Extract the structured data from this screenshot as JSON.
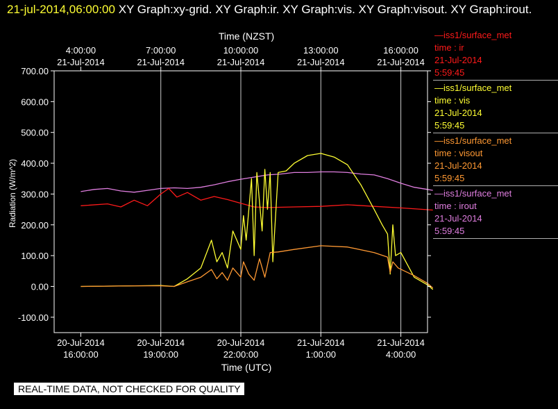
{
  "header": {
    "timestamp": "21-jul-2014,06:00:00",
    "title": "  XY Graph:xy-grid.  XY Graph:ir.  XY Graph:vis.  XY Graph:visout.  XY Graph:irout."
  },
  "legend": [
    {
      "line1": "—iss1/surface_met",
      "line2": "time : ir",
      "line3": "21-Jul-2014",
      "line4": "5:59:45",
      "color": "#ff1a1a"
    },
    {
      "line1": "—iss1/surface_met",
      "line2": "time : vis",
      "line3": "21-Jul-2014",
      "line4": "5:59:45",
      "color": "#ffff33"
    },
    {
      "line1": "—iss1/surface_met",
      "line2": "time : visout",
      "line3": "21-Jul-2014",
      "line4": "5:59:45",
      "color": "#ff9933"
    },
    {
      "line1": "—iss1/surface_met",
      "line2": "time : irout",
      "line3": "21-Jul-2014",
      "line4": "5:59:45",
      "color": "#e07ee0"
    }
  ],
  "disclaimer": "REAL-TIME DATA, NOT CHECKED FOR QUALITY",
  "chart_data": {
    "type": "line",
    "title": "",
    "xlabel": "Time (UTC)",
    "xlabel_top": "Time (NZST)",
    "ylabel": "Radiation (W/m^2)",
    "ylim": [
      -150,
      700
    ],
    "xlim_hours_utc": [
      15,
      29
    ],
    "grid": true,
    "legend_position": "right",
    "y_ticks": [
      "700.00",
      "600.00",
      "500.00",
      "400.00",
      "300.00",
      "200.00",
      "100.00",
      "0.00",
      "-100.00"
    ],
    "x_ticks_bottom": [
      {
        "date": "20-Jul-2014",
        "time": "16:00:00"
      },
      {
        "date": "20-Jul-2014",
        "time": "19:00:00"
      },
      {
        "date": "20-Jul-2014",
        "time": "22:00:00"
      },
      {
        "date": "21-Jul-2014",
        "time": "1:00:00"
      },
      {
        "date": "21-Jul-2014",
        "time": "4:00:00"
      }
    ],
    "x_ticks_top": [
      {
        "time": "4:00:00",
        "date": "21-Jul-2014"
      },
      {
        "time": "7:00:00",
        "date": "21-Jul-2014"
      },
      {
        "time": "10:00:00",
        "date": "21-Jul-2014"
      },
      {
        "time": "13:00:00",
        "date": "21-Jul-2014"
      },
      {
        "time": "16:00:00",
        "date": "21-Jul-2014"
      }
    ],
    "series": [
      {
        "name": "ir",
        "color": "#ff1a1a",
        "x": [
          16,
          17,
          17.5,
          18,
          18.5,
          19,
          19.3,
          19.6,
          20,
          20.5,
          21,
          21.5,
          22,
          22.5,
          23,
          24,
          25,
          26,
          27,
          28,
          29.2
        ],
        "y": [
          262,
          268,
          258,
          280,
          262,
          300,
          318,
          290,
          305,
          280,
          292,
          282,
          270,
          258,
          256,
          258,
          260,
          265,
          260,
          255,
          248
        ]
      },
      {
        "name": "vis",
        "color": "#ffff33",
        "x": [
          16,
          18,
          19,
          19.5,
          20.0,
          20.5,
          20.9,
          21.1,
          21.3,
          21.5,
          21.7,
          22.0,
          22.1,
          22.2,
          22.4,
          22.5,
          22.6,
          22.8,
          22.9,
          23.0,
          23.1,
          23.2,
          23.4,
          23.7,
          24,
          24.5,
          25,
          25.5,
          26.0,
          26.5,
          27.0,
          27.3,
          27.5,
          27.6,
          27.7,
          27.8,
          28.0,
          28.5,
          29.0,
          29.2
        ],
        "y": [
          0,
          2,
          3,
          0,
          25,
          60,
          150,
          80,
          110,
          60,
          180,
          120,
          230,
          150,
          350,
          100,
          370,
          180,
          380,
          250,
          370,
          80,
          370,
          375,
          400,
          425,
          432,
          420,
          395,
          330,
          250,
          200,
          170,
          40,
          200,
          100,
          110,
          30,
          5,
          -10
        ]
      },
      {
        "name": "visout",
        "color": "#ff9933",
        "x": [
          16,
          18,
          19,
          19.5,
          20.0,
          20.5,
          20.9,
          21.1,
          21.3,
          21.5,
          21.7,
          22.0,
          22.1,
          22.3,
          22.5,
          22.7,
          22.9,
          23.1,
          23.4,
          24,
          25,
          26,
          27,
          27.5,
          27.6,
          27.7,
          27.9,
          28.5,
          29.0,
          29.2
        ],
        "y": [
          0,
          2,
          2,
          0,
          15,
          30,
          55,
          25,
          45,
          20,
          60,
          30,
          80,
          40,
          20,
          90,
          30,
          110,
          112,
          120,
          132,
          128,
          110,
          95,
          45,
          80,
          60,
          35,
          10,
          -5
        ]
      },
      {
        "name": "irout",
        "color": "#e07ee0",
        "x": [
          16,
          16.5,
          17,
          17.5,
          18,
          18.5,
          19,
          19.5,
          20,
          20.5,
          21,
          21.5,
          22,
          22.5,
          23,
          23.5,
          24,
          24.5,
          25,
          25.5,
          26,
          26.5,
          27,
          27.5,
          28,
          28.5,
          29.0,
          29.2
        ],
        "y": [
          308,
          315,
          318,
          310,
          306,
          312,
          318,
          320,
          318,
          322,
          330,
          340,
          348,
          355,
          362,
          365,
          370,
          370,
          372,
          372,
          370,
          365,
          362,
          350,
          335,
          322,
          315,
          312
        ]
      }
    ]
  }
}
